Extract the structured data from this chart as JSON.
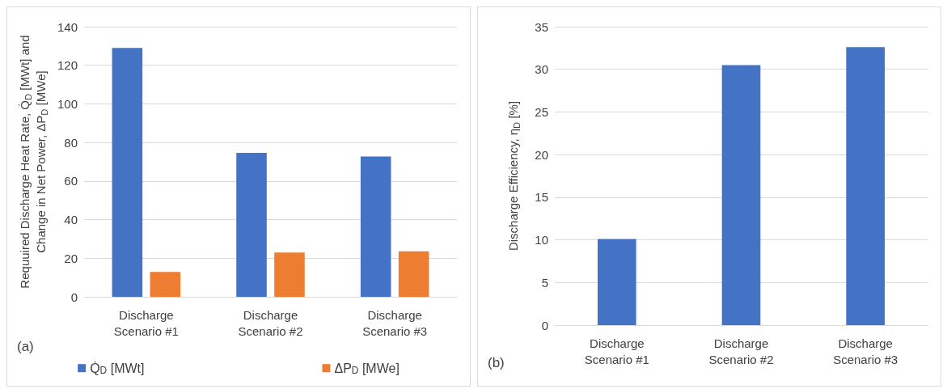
{
  "chart_data": [
    {
      "type": "bar",
      "categories": [
        "Discharge Scenario #1",
        "Discharge Scenario #2",
        "Discharge Scenario #3"
      ],
      "ylabel": "Requuired Discharge Heat Rate, Q̇$_{D}$ [MWt] and Change in Net Power, ΔP$_{D}$ [MWe]",
      "series": [
        {
          "name": "Q̇$_{D}$ [MWt]",
          "color": "#4472c4",
          "values": [
            129,
            74.6,
            72.7
          ]
        },
        {
          "name": "ΔP$_{D}$ [MWe]",
          "color": "#ed7d31",
          "values": [
            12.9,
            22.9,
            23.6
          ]
        }
      ],
      "ylim": [
        0,
        140
      ],
      "yticks": [
        0,
        20,
        40,
        60,
        80,
        100,
        120,
        140
      ],
      "grid": "y",
      "legend": "bottom",
      "annotations": [
        "(a)"
      ]
    },
    {
      "type": "bar",
      "categories": [
        "Discharge Scenario #1",
        "Discharge Scenario #2",
        "Discharge Scenario #3"
      ],
      "ylabel": "Discharge Efficiency, η$_{D}$ [%]",
      "series": [
        {
          "color": "#4472c4",
          "values": [
            10.1,
            30.5,
            32.6
          ]
        }
      ],
      "ylim": [
        0,
        35
      ],
      "yticks": [
        0,
        5,
        10,
        15,
        20,
        25,
        30,
        35
      ],
      "grid": "y",
      "annotations": [
        "(b)"
      ]
    }
  ]
}
